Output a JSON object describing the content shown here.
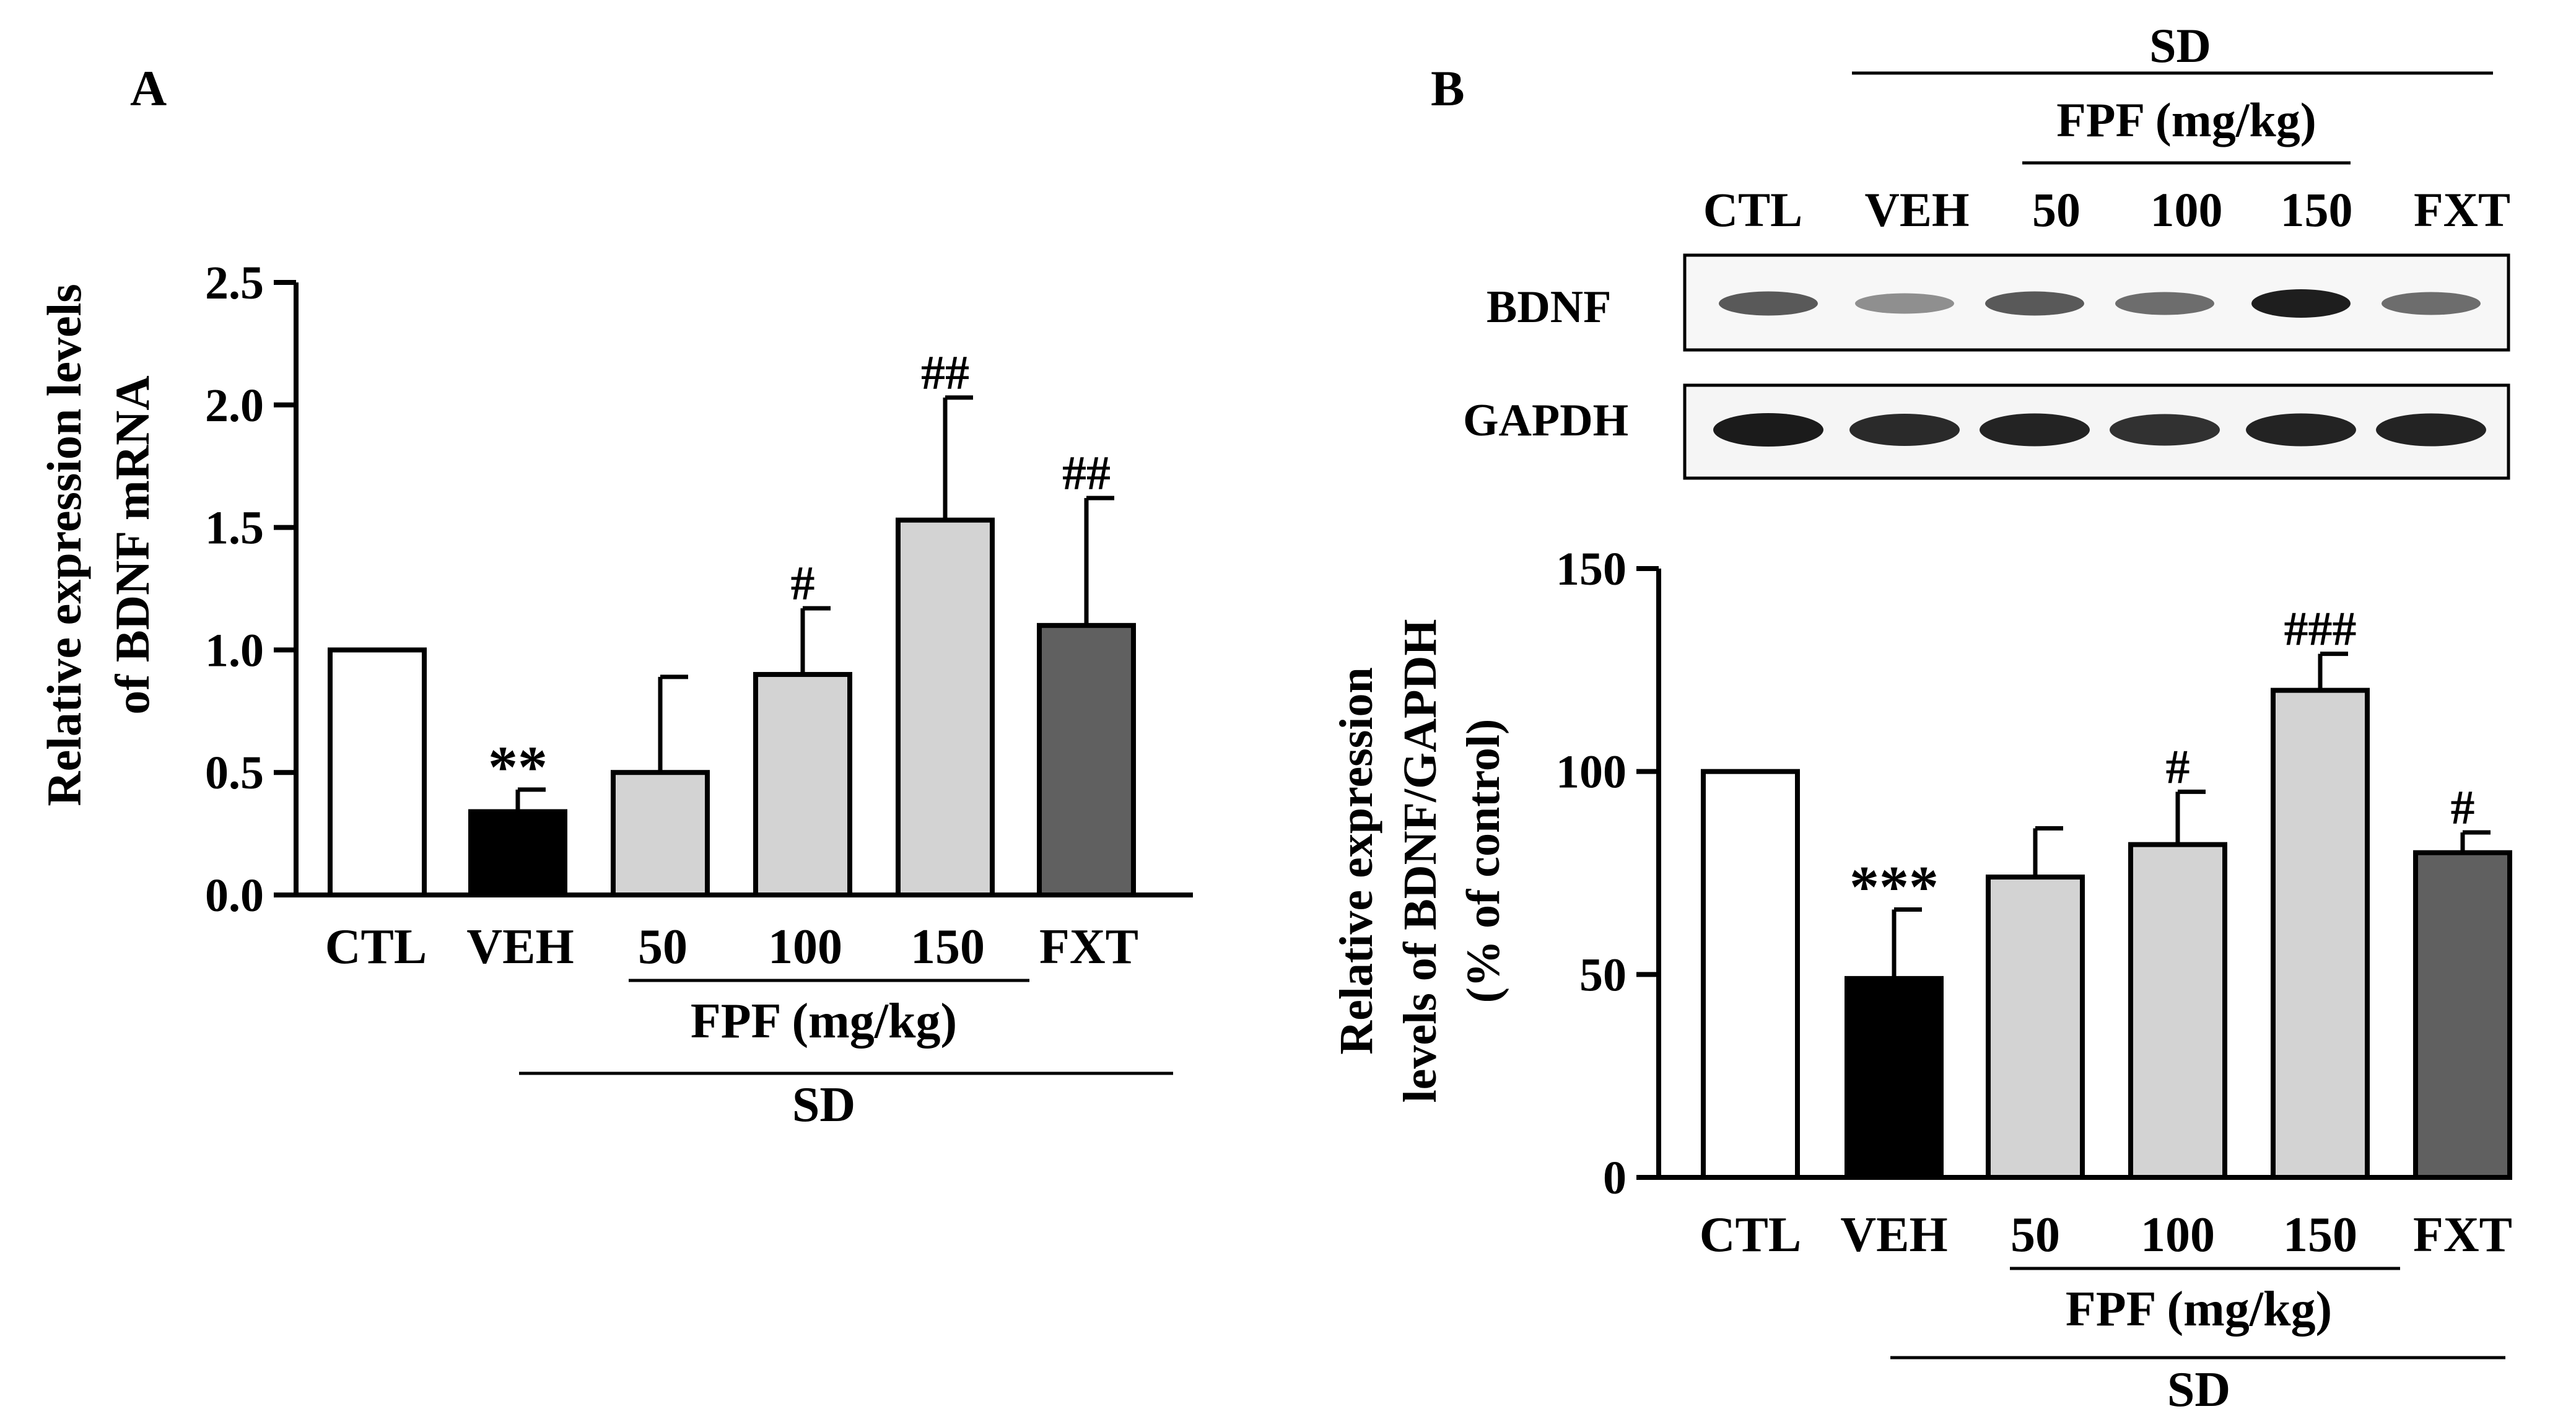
{
  "panels": {
    "A": {
      "label": "A"
    },
    "B": {
      "label": "B"
    }
  },
  "blot": {
    "top_group": "SD",
    "top_subgroup": "FPF (mg/kg)",
    "lanes": [
      "CTL",
      "VEH",
      "50",
      "100",
      "150",
      "FXT"
    ],
    "rows": [
      "BDNF",
      "GAPDH"
    ],
    "bdnf_band_intensity": [
      0.55,
      0.25,
      0.55,
      0.45,
      0.9,
      0.45
    ],
    "gapdh_band_intensity": [
      0.9,
      0.8,
      0.85,
      0.75,
      0.85,
      0.85
    ]
  },
  "chart_data": [
    {
      "panel": "A",
      "type": "bar",
      "categories": [
        "CTL",
        "VEH",
        "50",
        "100",
        "150",
        "FXT"
      ],
      "values": [
        1.0,
        0.34,
        0.5,
        0.9,
        1.53,
        1.1
      ],
      "errors": [
        0.0,
        0.09,
        0.39,
        0.27,
        0.5,
        0.52
      ],
      "significance": [
        "",
        "**",
        "",
        "#",
        "##",
        "##"
      ],
      "bar_colors": [
        "#ffffff",
        "#000000",
        "#d3d3d3",
        "#d3d3d3",
        "#d3d3d3",
        "#606060"
      ],
      "ylabel_line1": "Relative expression levels",
      "ylabel_line2": "of BDNF mRNA",
      "ylim": [
        0,
        2.5
      ],
      "yticks": [
        "0.0",
        "0.5",
        "1.0",
        "1.5",
        "2.0",
        "2.5"
      ],
      "group_label": "FPF (mg/kg)",
      "outer_group_label": "SD"
    },
    {
      "panel": "B",
      "type": "bar",
      "categories": [
        "CTL",
        "VEH",
        "50",
        "100",
        "150",
        "FXT"
      ],
      "values": [
        100,
        49,
        74,
        82,
        120,
        80
      ],
      "errors": [
        0,
        17,
        12,
        13,
        9,
        5
      ],
      "significance": [
        "",
        "***",
        "",
        "#",
        "###",
        "#"
      ],
      "bar_colors": [
        "#ffffff",
        "#000000",
        "#d3d3d3",
        "#d3d3d3",
        "#d3d3d3",
        "#606060"
      ],
      "ylabel_line1": "Relative expression",
      "ylabel_line2": "levels of BDNF/GAPDH",
      "ylabel_line3": "(% of control)",
      "ylim": [
        0,
        150
      ],
      "yticks": [
        "0",
        "50",
        "100",
        "150"
      ],
      "group_label": "FPF (mg/kg)",
      "outer_group_label": "SD"
    }
  ]
}
